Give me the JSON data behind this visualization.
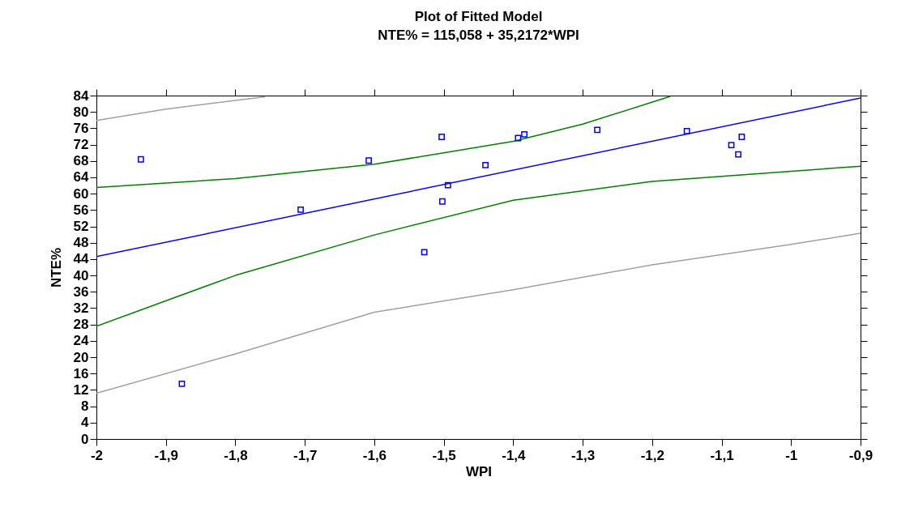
{
  "chart_data": {
    "type": "scatter",
    "title": "Plot of Fitted Model",
    "subtitle": "NTE% = 115,058 + 35,2172*WPI",
    "xlabel": "WPI",
    "ylabel": "NTE%",
    "xlim": [
      -2,
      -0.9
    ],
    "ylim": [
      0,
      84
    ],
    "xticks": [
      -2,
      {
        "value": -1.9,
        "label": "-1,9"
      },
      {
        "value": -1.8,
        "label": "-1,8"
      },
      {
        "value": -1.7,
        "label": "-1,7"
      },
      {
        "value": -1.6,
        "label": "-1,6"
      },
      {
        "value": -1.5,
        "label": "-1,5"
      },
      {
        "value": -1.4,
        "label": "-1,4"
      },
      {
        "value": -1.3,
        "label": "-1,3"
      },
      {
        "value": -1.2,
        "label": "-1,2"
      },
      {
        "value": -1.1,
        "label": "-1,1"
      },
      -1,
      {
        "value": -0.9,
        "label": "-0,9"
      }
    ],
    "yticks": [
      0,
      4,
      8,
      12,
      16,
      20,
      24,
      28,
      32,
      36,
      40,
      44,
      48,
      52,
      56,
      60,
      64,
      68,
      72,
      76,
      80,
      84
    ],
    "grid": false,
    "series": [
      {
        "type": "line",
        "color": "#a0a0a0",
        "x": [
          -2,
          -1.9,
          -1.757
        ],
        "values": [
          77.9,
          80.7,
          83.7
        ]
      },
      {
        "type": "line",
        "color": "#a0a0a0",
        "x": [
          -2,
          -1.8,
          -1.6,
          -1.4,
          -1.2,
          -1.0,
          -0.9
        ],
        "values": [
          11.2,
          20.8,
          31.0,
          36.5,
          42.6,
          47.6,
          50.3
        ]
      },
      {
        "type": "line",
        "color": "#008000",
        "x": [
          -2,
          -1.8,
          -1.6,
          -1.4,
          -1.3,
          -1.174
        ],
        "values": [
          61.5,
          63.7,
          67.2,
          72.8,
          77.0,
          83.8
        ]
      },
      {
        "type": "line",
        "color": "#008000",
        "x": [
          -2,
          -1.8,
          -1.6,
          -1.4,
          -1.2,
          -1.0,
          -0.9
        ],
        "values": [
          27.6,
          40.0,
          49.9,
          58.4,
          63.0,
          65.5,
          66.7
        ]
      },
      {
        "type": "line",
        "color": "#0000ff",
        "x": [
          -2,
          -0.9
        ],
        "values": [
          44.6,
          83.4
        ]
      },
      {
        "marker": "square",
        "color": "#0000ff",
        "x": [
          -1.936,
          -1.877,
          -1.706,
          -1.608,
          -1.503,
          -1.494,
          -1.502,
          -1.528,
          -1.44,
          -1.393,
          -1.384,
          -1.279,
          -1.15,
          -1.086,
          -1.076,
          -1.071
        ],
        "values": [
          68.4,
          13.5,
          56.1,
          68.1,
          73.9,
          62.1,
          58.1,
          45.7,
          67.0,
          73.6,
          74.5,
          75.6,
          75.3,
          71.9,
          69.6,
          73.9
        ]
      }
    ]
  }
}
